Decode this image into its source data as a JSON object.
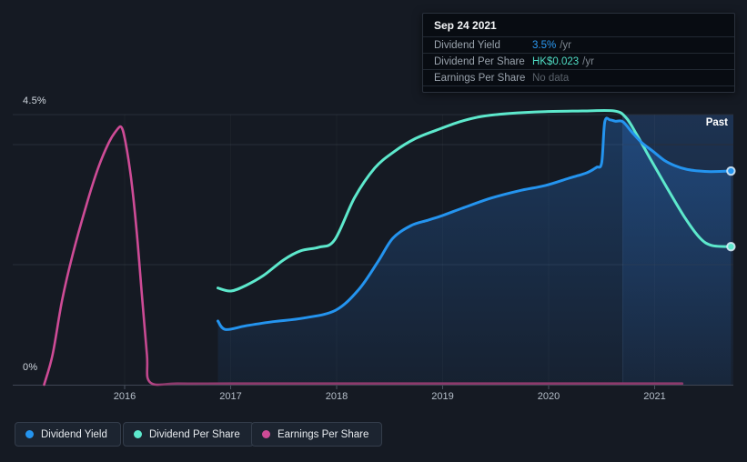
{
  "page": {
    "background": "#151a23"
  },
  "tooltip": {
    "date": "Sep 24 2021",
    "rows": [
      {
        "label": "Dividend Yield",
        "value": "3.5%",
        "suffix": "/yr",
        "value_color": "#2b9af3"
      },
      {
        "label": "Dividend Per Share",
        "value": "HK$0.023",
        "suffix": "/yr",
        "value_color": "#4fdcc3"
      },
      {
        "label": "Earnings Per Share",
        "value": "No data",
        "suffix": "",
        "value_color": "#5a626b"
      }
    ]
  },
  "axis": {
    "y_top_label": "4.5%",
    "y_bottom_label": "0%",
    "x_labels": [
      "2016",
      "2017",
      "2018",
      "2019",
      "2020",
      "2021"
    ],
    "past_label": "Past"
  },
  "legend": {
    "items": [
      {
        "label": "Dividend Yield",
        "color": "#2494ef"
      },
      {
        "label": "Dividend Per Share",
        "color": "#5de8cc"
      },
      {
        "label": "Earnings Per Share",
        "color": "#ce4b96"
      }
    ]
  },
  "chart_data": {
    "type": "line",
    "x_range": [
      2014.94,
      2021.74
    ],
    "ylim": [
      0,
      4.5
    ],
    "y_unit": "%",
    "y_gridlines_pct": [
      4.5,
      4,
      2,
      0
    ],
    "x_tick_years": [
      2016,
      2017,
      2018,
      2019,
      2020,
      2021
    ],
    "past_region_start": 2020.7,
    "legend_position": "bottom",
    "grid": true,
    "series": [
      {
        "name": "Dividend Yield",
        "color": "#2494ef",
        "axis_unit": "%",
        "area_fill": true,
        "end_marker": true,
        "points": [
          [
            2016.88,
            1.06
          ],
          [
            2016.95,
            0.92
          ],
          [
            2017.14,
            0.98
          ],
          [
            2017.4,
            1.05
          ],
          [
            2017.69,
            1.11
          ],
          [
            2017.99,
            1.24
          ],
          [
            2018.21,
            1.59
          ],
          [
            2018.39,
            2.05
          ],
          [
            2018.53,
            2.44
          ],
          [
            2018.7,
            2.65
          ],
          [
            2018.86,
            2.74
          ],
          [
            2019.0,
            2.82
          ],
          [
            2019.2,
            2.95
          ],
          [
            2019.46,
            3.11
          ],
          [
            2019.72,
            3.23
          ],
          [
            2019.97,
            3.32
          ],
          [
            2020.19,
            3.44
          ],
          [
            2020.36,
            3.53
          ],
          [
            2020.45,
            3.62
          ],
          [
            2020.5,
            3.7
          ],
          [
            2020.53,
            4.38
          ],
          [
            2020.58,
            4.41
          ],
          [
            2020.63,
            4.39
          ],
          [
            2020.7,
            4.38
          ],
          [
            2020.79,
            4.2
          ],
          [
            2020.88,
            4.03
          ],
          [
            2020.99,
            3.88
          ],
          [
            2021.09,
            3.74
          ],
          [
            2021.19,
            3.65
          ],
          [
            2021.3,
            3.59
          ],
          [
            2021.42,
            3.56
          ],
          [
            2021.53,
            3.55
          ],
          [
            2021.72,
            3.56
          ]
        ]
      },
      {
        "name": "Dividend Per Share",
        "color": "#5de8cc",
        "axis_unit": "%",
        "area_fill": false,
        "end_marker": true,
        "points": [
          [
            2016.88,
            1.61
          ],
          [
            2017.0,
            1.56
          ],
          [
            2017.14,
            1.65
          ],
          [
            2017.31,
            1.82
          ],
          [
            2017.5,
            2.08
          ],
          [
            2017.66,
            2.23
          ],
          [
            2017.83,
            2.29
          ],
          [
            2017.98,
            2.41
          ],
          [
            2018.17,
            3.12
          ],
          [
            2018.36,
            3.61
          ],
          [
            2018.54,
            3.88
          ],
          [
            2018.73,
            4.09
          ],
          [
            2018.94,
            4.24
          ],
          [
            2019.16,
            4.38
          ],
          [
            2019.37,
            4.47
          ],
          [
            2019.63,
            4.52
          ],
          [
            2019.97,
            4.55
          ],
          [
            2020.32,
            4.56
          ],
          [
            2020.62,
            4.56
          ],
          [
            2020.73,
            4.45
          ],
          [
            2020.83,
            4.17
          ],
          [
            2020.96,
            3.76
          ],
          [
            2021.12,
            3.27
          ],
          [
            2021.29,
            2.77
          ],
          [
            2021.43,
            2.44
          ],
          [
            2021.54,
            2.32
          ],
          [
            2021.72,
            2.3
          ]
        ]
      },
      {
        "name": "Earnings Per Share",
        "color": "#ce4b96",
        "muted_color": "#8d3a6c",
        "muted_after_x": 2016.24,
        "axis_unit": "%",
        "area_fill": false,
        "end_marker": false,
        "points": [
          [
            2015.24,
            0.0
          ],
          [
            2015.32,
            0.5
          ],
          [
            2015.41,
            1.41
          ],
          [
            2015.51,
            2.17
          ],
          [
            2015.64,
            3.0
          ],
          [
            2015.75,
            3.61
          ],
          [
            2015.85,
            4.03
          ],
          [
            2015.92,
            4.23
          ],
          [
            2015.97,
            4.29
          ],
          [
            2016.01,
            4.02
          ],
          [
            2016.06,
            3.45
          ],
          [
            2016.11,
            2.62
          ],
          [
            2016.16,
            1.56
          ],
          [
            2016.21,
            0.5
          ],
          [
            2016.24,
            0.04
          ],
          [
            2016.5,
            0.02
          ],
          [
            2017.0,
            0.02
          ],
          [
            2018.0,
            0.02
          ],
          [
            2019.0,
            0.02
          ],
          [
            2020.0,
            0.02
          ],
          [
            2021.0,
            0.02
          ],
          [
            2021.26,
            0.02
          ]
        ]
      }
    ]
  }
}
